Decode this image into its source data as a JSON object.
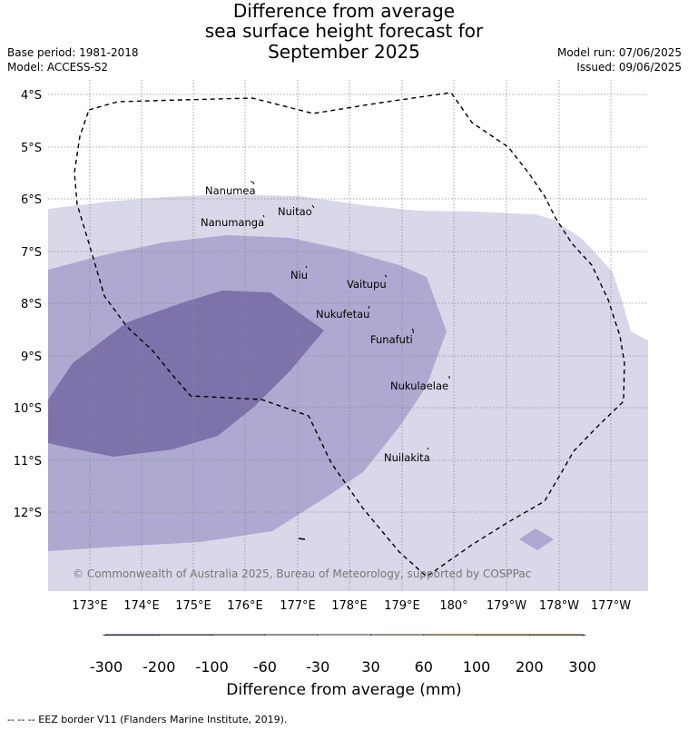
{
  "header": {
    "title_lines": [
      "Difference from average",
      "sea surface height forecast for",
      "September 2025"
    ],
    "base_period": "Base period: 1981-2018",
    "model": "Model: ACCESS-S2",
    "model_run": "Model run: 07/06/2025",
    "issued": "Issued: 09/06/2025"
  },
  "map": {
    "lat_labels": [
      "4°S",
      "5°S",
      "6°S",
      "7°S",
      "8°S",
      "9°S",
      "10°S",
      "11°S",
      "12°S"
    ],
    "lon_labels": [
      "173°E",
      "174°E",
      "175°E",
      "176°E",
      "177°E",
      "178°E",
      "179°E",
      "180°",
      "179°W",
      "178°W",
      "177°W"
    ],
    "islands": [
      {
        "name": "Nanumea"
      },
      {
        "name": "Nuitao"
      },
      {
        "name": "Nanumanga"
      },
      {
        "name": "Niu"
      },
      {
        "name": "Vaitupu"
      },
      {
        "name": "Nukufetau"
      },
      {
        "name": "Funafuti"
      },
      {
        "name": "Nukulaelae"
      },
      {
        "name": "Nuilakita"
      }
    ],
    "copyright": "© Commonwealth of Australia 2025, Bureau of Meteorology, supported by COSPPac",
    "colors": {
      "-200 to -100": "#7e72ab",
      "-100 to -60": "#aea9d0",
      "-60 to -30": "#d8d8e9"
    }
  },
  "colorbar": {
    "ticks": [
      "-300",
      "-200",
      "-100",
      "-60",
      "-30",
      "30",
      "60",
      "100",
      "200",
      "300"
    ],
    "colors": [
      "#3f0e6f",
      "#54278f",
      "#7e72ab",
      "#aea9d0",
      "#d8d8e9",
      "#ffffff",
      "#fee0b6",
      "#fdb462",
      "#e08214",
      "#b35806",
      "#7f3b08"
    ],
    "label": "Difference from average (mm)"
  },
  "footer": {
    "legend": "-- -- -- EEZ border V11 (Flanders Marine Institute, 2019)."
  }
}
